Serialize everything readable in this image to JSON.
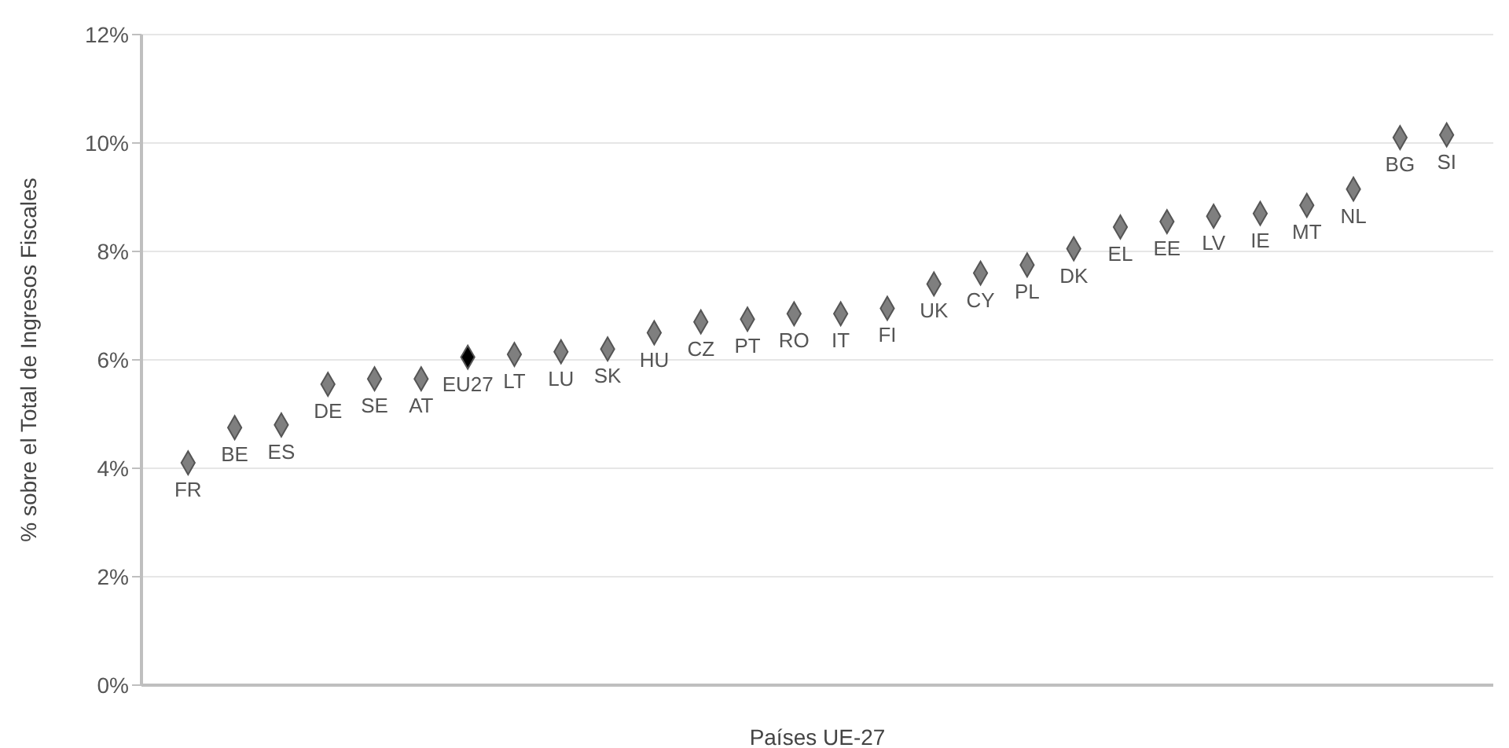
{
  "chart_data": {
    "type": "scatter",
    "xlabel": "Países UE-27",
    "ylabel": "% sobre el Total de Ingresos Fiscales",
    "categories": [
      "FR",
      "BE",
      "ES",
      "DE",
      "SE",
      "AT",
      "EU27",
      "LT",
      "LU",
      "SK",
      "HU",
      "CZ",
      "PT",
      "RO",
      "IT",
      "FI",
      "UK",
      "CY",
      "PL",
      "DK",
      "EL",
      "EE",
      "LV",
      "IE",
      "MT",
      "NL",
      "BG",
      "SI"
    ],
    "values": [
      4.1,
      4.75,
      4.8,
      5.55,
      5.65,
      5.65,
      6.05,
      6.1,
      6.15,
      6.2,
      6.5,
      6.7,
      6.75,
      6.85,
      6.85,
      6.95,
      7.4,
      7.6,
      7.75,
      8.05,
      8.45,
      8.55,
      8.65,
      8.7,
      8.85,
      9.15,
      10.1,
      10.15
    ],
    "colors": [
      "#7f7f7f",
      "#7f7f7f",
      "#7f7f7f",
      "#7f7f7f",
      "#7f7f7f",
      "#7f7f7f",
      "#000000",
      "#7f7f7f",
      "#7f7f7f",
      "#7f7f7f",
      "#7f7f7f",
      "#7f7f7f",
      "#7f7f7f",
      "#7f7f7f",
      "#7f7f7f",
      "#7f7f7f",
      "#7f7f7f",
      "#7f7f7f",
      "#7f7f7f",
      "#7f7f7f",
      "#7f7f7f",
      "#7f7f7f",
      "#7f7f7f",
      "#7f7f7f",
      "#7f7f7f",
      "#7f7f7f",
      "#7f7f7f",
      "#7f7f7f"
    ],
    "ylim": [
      0,
      12
    ],
    "yticks": [
      {
        "value": 0,
        "label": "0%"
      },
      {
        "value": 2,
        "label": "2%"
      },
      {
        "value": 4,
        "label": "4%"
      },
      {
        "value": 6,
        "label": "6%"
      },
      {
        "value": 8,
        "label": "8%"
      },
      {
        "value": 10,
        "label": "10%"
      },
      {
        "value": 12,
        "label": "12%"
      }
    ],
    "grid": "y",
    "marker": "diamond",
    "tick_labels": "y",
    "legend": false
  }
}
